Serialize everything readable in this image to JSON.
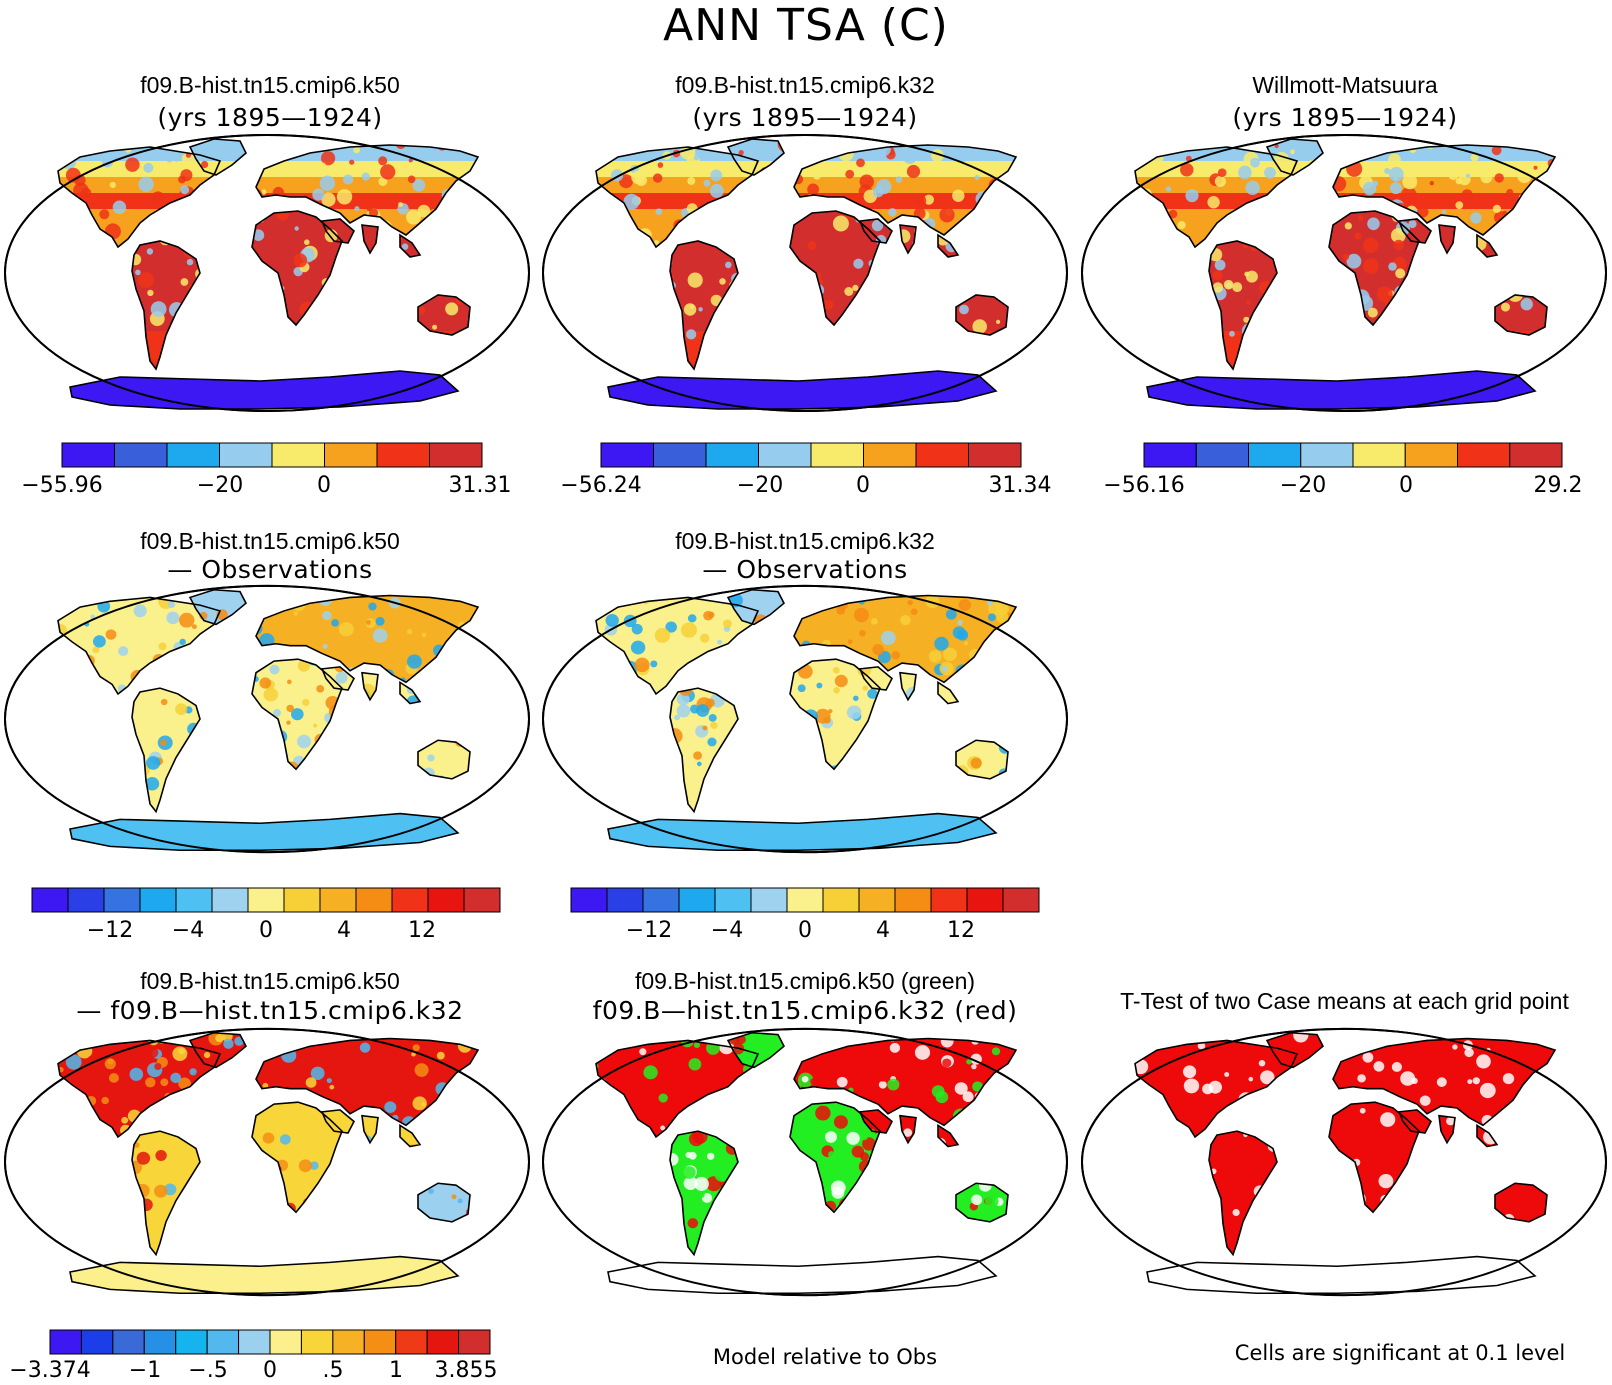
{
  "title": "ANN TSA (C)",
  "colors": {
    "abs_scale": [
      "#3d18f2",
      "#3a5fdb",
      "#1ea8ee",
      "#96cdee",
      "#f8ea6a",
      "#f6a21e",
      "#ef3218",
      "#d32e2e"
    ],
    "diff_scale": [
      "#3d18f2",
      "#2a3fe6",
      "#3573e0",
      "#1ea8ee",
      "#4fc0f2",
      "#9fd2ef",
      "#faf08c",
      "#f7d038",
      "#f6b024",
      "#f58c14",
      "#ef3218",
      "#e81410",
      "#d32e2e"
    ],
    "case_diff_scale": [
      "#3d18f2",
      "#1c3ee8",
      "#3a6ad8",
      "#2590e6",
      "#16b4ee",
      "#52b8ee",
      "#9bd0ee",
      "#fbf08c",
      "#f8d63a",
      "#f6b224",
      "#f58e14",
      "#ef3a18",
      "#e4160f",
      "#d32e2e"
    ],
    "land_warm": "#d63328",
    "land_neutral": "#f5e070",
    "land_cool": "#7ec1ec",
    "antarctic": "#3b25e8",
    "sig_green": "#22ee22",
    "sig_red": "#ee0a0a"
  },
  "panels": [
    {
      "id": "model-k50",
      "title_line1": "f09.B-hist.tn15.cmip6.k50",
      "title_line2": "(yrs 1895—1924)",
      "colorbar_labels": [
        "−55.96",
        "−20",
        "0",
        "31.31"
      ]
    },
    {
      "id": "model-k32",
      "title_line1": "f09.B-hist.tn15.cmip6.k32",
      "title_line2": "(yrs 1895—1924)",
      "colorbar_labels": [
        "−56.24",
        "−20",
        "0",
        "31.34"
      ]
    },
    {
      "id": "obs",
      "title_line1": "Willmott-Matsuura",
      "title_line2": "(yrs 1895—1924)",
      "colorbar_labels": [
        "−56.16",
        "−20",
        "0",
        "29.2"
      ]
    },
    {
      "id": "k50-minus-obs",
      "title_line1": "f09.B-hist.tn15.cmip6.k50",
      "title_line2": "— Observations",
      "colorbar_labels": [
        "−12",
        "−4",
        "0",
        "4",
        "12"
      ]
    },
    {
      "id": "k32-minus-obs",
      "title_line1": "f09.B-hist.tn15.cmip6.k32",
      "title_line2": "— Observations",
      "colorbar_labels": [
        "−12",
        "−4",
        "0",
        "4",
        "12"
      ]
    },
    {
      "id": "k50-minus-k32",
      "title_line1": "f09.B-hist.tn15.cmip6.k50",
      "title_line2": "— f09.B—hist.tn15.cmip6.k32",
      "colorbar_labels": [
        "−3.374",
        "−1",
        "−.5",
        "0",
        ".5",
        "1",
        "3.855"
      ]
    },
    {
      "id": "model-relative",
      "title_line1": "f09.B-hist.tn15.cmip6.k50 (green)",
      "title_line2": "f09.B—hist.tn15.cmip6.k32 (red)",
      "note": "Model relative to Obs"
    },
    {
      "id": "t-test",
      "title_line1": "T-Test of two Case means at each grid point",
      "note": "Cells are significant at 0.1 level"
    }
  ]
}
